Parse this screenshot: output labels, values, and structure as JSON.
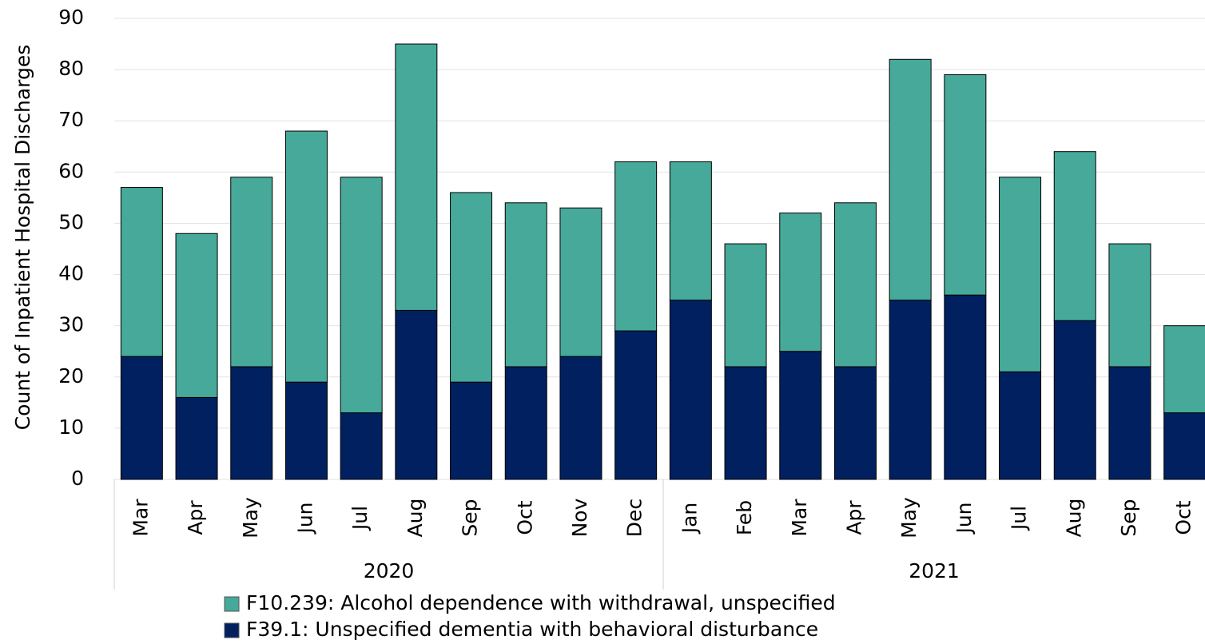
{
  "chart_data": {
    "type": "stacked_bar",
    "y_label": "Count of Inpatient Hospital Discharges",
    "groups": [
      {
        "name": "2020",
        "categories": [
          "Mar",
          "Apr",
          "May",
          "Jun",
          "Jul",
          "Aug",
          "Sep",
          "Oct",
          "Nov",
          "Dec"
        ]
      },
      {
        "name": "2021",
        "categories": [
          "Jan",
          "Feb",
          "Mar",
          "Apr",
          "May",
          "Jun",
          "Jul",
          "Aug",
          "Sep",
          "Oct"
        ]
      }
    ],
    "series": [
      {
        "name": "F39.1: Unspecified dementia with behavioral disturbance",
        "color": "#002060",
        "values": [
          24,
          16,
          22,
          19,
          13,
          33,
          19,
          22,
          24,
          29,
          35,
          22,
          25,
          22,
          35,
          36,
          21,
          31,
          22,
          13
        ]
      },
      {
        "name": "F10.239: Alcohol dependence with withdrawal, unspecified",
        "color": "#46a999",
        "values": [
          33,
          32,
          37,
          49,
          46,
          52,
          37,
          32,
          29,
          33,
          27,
          24,
          27,
          32,
          47,
          43,
          38,
          33,
          24,
          17
        ]
      }
    ],
    "ylim": [
      0,
      90
    ],
    "yticks": [
      0,
      10,
      20,
      30,
      40,
      50,
      60,
      70,
      80,
      90
    ],
    "grid": true
  }
}
